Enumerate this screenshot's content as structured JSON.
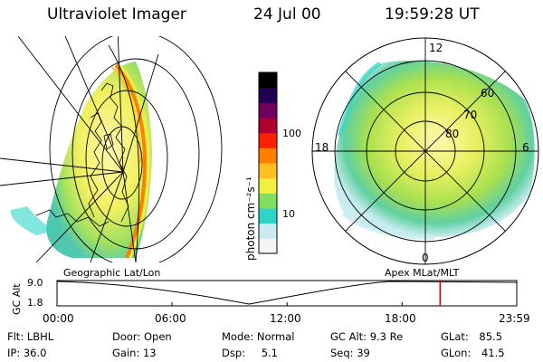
{
  "header": {
    "instrument": "Ultraviolet Imager",
    "date": "24 Jul 00",
    "time": "19:59:28 UT"
  },
  "colorbar": {
    "unit_label": "photon cm⁻²s⁻¹",
    "ticks": [
      {
        "label": "100",
        "value": 100
      },
      {
        "label": "10",
        "value": 10
      }
    ],
    "colors": [
      "#f4f4f4",
      "#c8ecf0",
      "#2fd4c8",
      "#7fe060",
      "#f0f040",
      "#ffc020",
      "#ff8000",
      "#ff2000",
      "#b00030",
      "#700060",
      "#200050",
      "#000000"
    ]
  },
  "geographic_map": {
    "label": "Geographic Lat/Lon"
  },
  "polar_map": {
    "label": "Apex MLat/MLT",
    "latitude_labels": [
      "60",
      "70",
      "80"
    ],
    "mlt_labels": {
      "top": "12",
      "left": "18",
      "right": "6",
      "bottom": "0"
    }
  },
  "altitude_plot": {
    "axis_label": "GC Alt",
    "y_ticks": [
      "9.0",
      "1.8"
    ],
    "x_ticks": [
      "00:00",
      "06:00",
      "12:00",
      "18:00",
      "23:59"
    ],
    "marker_time": "19:59",
    "marker_color": "#e00000"
  },
  "info": {
    "filter_label": "Flt:",
    "filter": "LBHL",
    "door_label": "Door:",
    "door": "Open",
    "mode_label": "Mode:",
    "mode": "Normal",
    "gcalt_label": "GC Alt:",
    "gcalt": "9.3 Re",
    "glat_label": "GLat:",
    "glat": "85.5",
    "ip_label": "IP:",
    "ip": "36.0",
    "gain_label": "Gain:",
    "gain": "13",
    "dsp_label": "Dsp:",
    "dsp": "5.1",
    "seq_label": "Seq:",
    "seq": "39",
    "glon_label": "GLon:",
    "glon": "41.5"
  }
}
